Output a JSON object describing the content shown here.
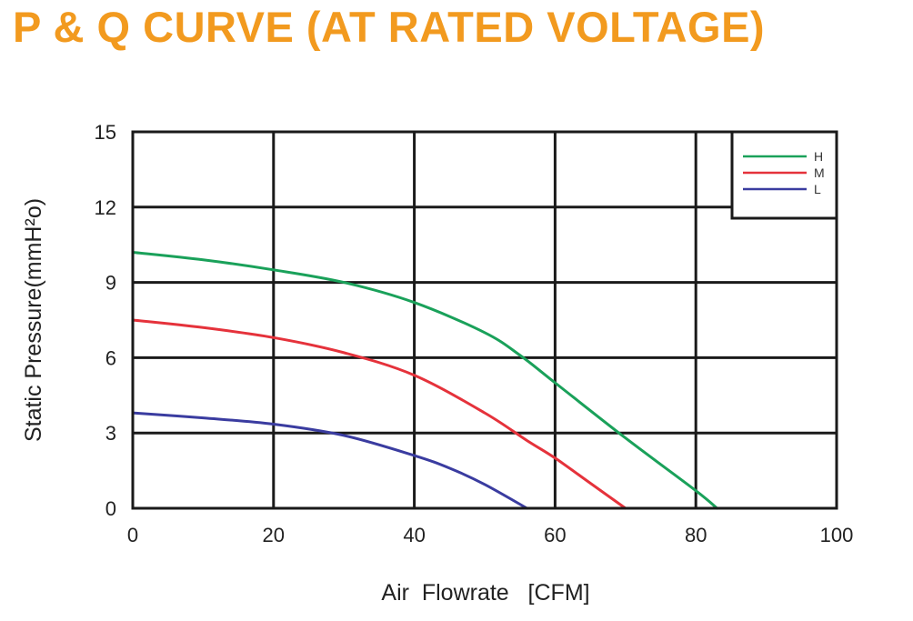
{
  "chart_data": {
    "type": "line",
    "title": "P & Q CURVE (AT RATED VOLTAGE)",
    "xlabel": "Air  Flowrate   [CFM]",
    "ylabel": "Static Pressure(mmH²o)",
    "xlim": [
      0,
      100
    ],
    "ylim": [
      0,
      15
    ],
    "xticks": [
      "0",
      "20",
      "40",
      "60",
      "80",
      "100"
    ],
    "yticks": [
      "0",
      "3",
      "6",
      "9",
      "12",
      "15"
    ],
    "grid": true,
    "legend_position": "top-right",
    "series": [
      {
        "name": "H",
        "color": "#1aa15a",
        "points": [
          [
            0,
            10.2
          ],
          [
            10,
            9.9
          ],
          [
            20,
            9.5
          ],
          [
            30,
            9.0
          ],
          [
            40,
            8.2
          ],
          [
            50,
            7.0
          ],
          [
            55,
            6.1
          ],
          [
            60,
            5.0
          ],
          [
            70,
            2.8
          ],
          [
            80,
            0.7
          ],
          [
            83,
            0
          ]
        ]
      },
      {
        "name": "M",
        "color": "#e5323b",
        "points": [
          [
            0,
            7.5
          ],
          [
            10,
            7.2
          ],
          [
            20,
            6.8
          ],
          [
            30,
            6.2
          ],
          [
            40,
            5.3
          ],
          [
            50,
            3.8
          ],
          [
            56,
            2.7
          ],
          [
            60,
            2.0
          ],
          [
            65,
            1.0
          ],
          [
            70,
            0
          ]
        ]
      },
      {
        "name": "L",
        "color": "#3a3ca0",
        "points": [
          [
            0,
            3.8
          ],
          [
            10,
            3.6
          ],
          [
            20,
            3.35
          ],
          [
            30,
            2.9
          ],
          [
            40,
            2.1
          ],
          [
            45,
            1.6
          ],
          [
            50,
            0.95
          ],
          [
            56,
            0
          ]
        ]
      }
    ]
  }
}
